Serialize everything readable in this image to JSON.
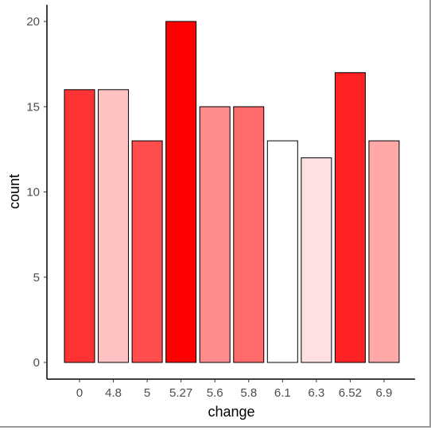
{
  "chart_data": {
    "type": "bar",
    "xlabel": "change",
    "ylabel": "count",
    "categories": [
      "0",
      "4.8",
      "5",
      "5.27",
      "5.6",
      "5.8",
      "6.1",
      "6.3",
      "6.52",
      "6.9"
    ],
    "values": [
      16,
      16,
      13,
      20,
      15,
      15,
      13,
      12,
      17,
      13
    ],
    "bar_colors": [
      "#FF3333",
      "#FFC2C2",
      "#FF4D4D",
      "#FF0000",
      "#FF8C8C",
      "#FF6B6B",
      "#FFFFFF",
      "#FFE0E0",
      "#FF2222",
      "#FFA8A8"
    ],
    "yticks": [
      0,
      5,
      10,
      15,
      20
    ],
    "ylim": [
      0,
      21.5
    ],
    "bar_stroke": "#000000",
    "grid": false,
    "legend": "none"
  }
}
